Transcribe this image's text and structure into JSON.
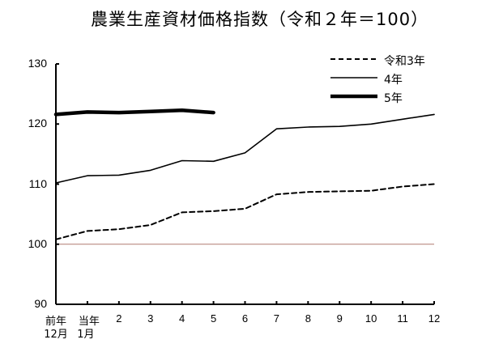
{
  "chart_data": {
    "type": "line",
    "title": "農業生産資材価格指数（令和２年＝100）",
    "xlabel": "",
    "ylabel": "",
    "ylim": [
      90,
      130
    ],
    "yticks": [
      "130",
      "120",
      "110",
      "100",
      "90"
    ],
    "categories": [
      "前年12月",
      "当年1月",
      "2",
      "3",
      "4",
      "5",
      "6",
      "7",
      "8",
      "9",
      "10",
      "11",
      "12"
    ],
    "x_tick_labels_top": [
      "前年",
      "当年",
      "2",
      "3",
      "4",
      "5",
      "6",
      "7",
      "8",
      "9",
      "10",
      "11",
      "12"
    ],
    "x_tick_labels_bottom": [
      "12月",
      "1月"
    ],
    "reference_line": {
      "value": 100,
      "color": "#b07a70"
    },
    "grid": false,
    "legend_position": "upper-right",
    "series": [
      {
        "name": "令和3年",
        "style": "dashed",
        "values": [
          100.8,
          102.2,
          102.5,
          103.2,
          105.3,
          105.5,
          105.9,
          108.3,
          108.7,
          108.8,
          108.9,
          109.6,
          110.0
        ]
      },
      {
        "name": "4年",
        "style": "solid",
        "values": [
          110.2,
          111.4,
          111.5,
          112.3,
          113.9,
          113.8,
          115.2,
          119.2,
          119.5,
          119.6,
          120.0,
          120.8,
          121.6
        ]
      },
      {
        "name": "5年",
        "style": "bold",
        "values": [
          121.6,
          122.0,
          121.9,
          122.1,
          122.3,
          121.9
        ]
      }
    ]
  },
  "legend": {
    "items": [
      {
        "label": "令和3年"
      },
      {
        "label": "4年"
      },
      {
        "label": "5年"
      }
    ]
  }
}
